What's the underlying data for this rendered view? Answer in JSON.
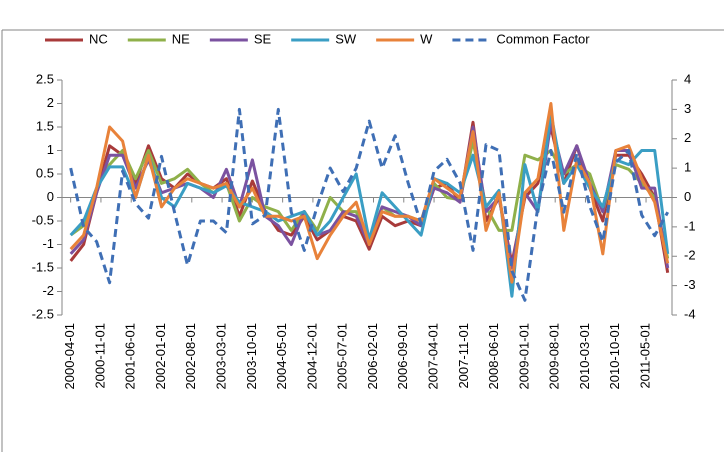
{
  "chart_data": {
    "type": "line",
    "x": [
      "2000-04-01",
      "2000-07-01",
      "2000-10-01",
      "2001-01-01",
      "2001-04-01",
      "2001-07-01",
      "2001-10-01",
      "2002-01-01",
      "2002-04-01",
      "2002-07-01",
      "2002-10-01",
      "2003-01-01",
      "2003-04-01",
      "2003-07-01",
      "2003-10-01",
      "2004-01-01",
      "2004-04-01",
      "2004-07-01",
      "2004-10-01",
      "2005-01-01",
      "2005-04-01",
      "2005-07-01",
      "2005-10-01",
      "2006-01-01",
      "2006-04-01",
      "2006-07-01",
      "2006-10-01",
      "2007-01-01",
      "2007-04-01",
      "2007-07-01",
      "2007-10-01",
      "2008-01-01",
      "2008-04-01",
      "2008-07-01",
      "2008-10-01",
      "2009-01-01",
      "2009-04-01",
      "2009-07-01",
      "2009-10-01",
      "2010-01-01",
      "2010-04-01",
      "2010-07-01",
      "2010-10-01",
      "2011-01-01",
      "2011-04-01",
      "2011-07-01",
      "2011-10-01"
    ],
    "series": [
      {
        "name": "NC",
        "color": "#a83a3a",
        "values": [
          -1.35,
          -1.0,
          0.1,
          1.1,
          0.9,
          0.3,
          1.1,
          0.4,
          0.2,
          0.5,
          0.3,
          0.2,
          0.4,
          -0.4,
          0.35,
          -0.3,
          -0.7,
          -0.8,
          -0.4,
          -0.9,
          -0.7,
          -0.4,
          -0.5,
          -1.1,
          -0.4,
          -0.6,
          -0.5,
          -0.6,
          0.2,
          0.3,
          -0.1,
          1.6,
          -0.5,
          0.0,
          -1.4,
          0.0,
          0.3,
          1.5,
          0.3,
          1.1,
          0.2,
          -0.5,
          0.9,
          0.9,
          0.5,
          0.0,
          -1.6
        ]
      },
      {
        "name": "NE",
        "color": "#8fb04a",
        "values": [
          -0.8,
          -0.6,
          0.2,
          0.7,
          1.0,
          0.4,
          1.0,
          0.3,
          0.4,
          0.6,
          0.3,
          0.1,
          0.3,
          -0.5,
          0.0,
          -0.2,
          -0.3,
          -0.7,
          -0.3,
          -0.7,
          0.0,
          -0.3,
          -0.3,
          -0.9,
          -0.2,
          -0.4,
          -0.4,
          -0.5,
          0.3,
          0.0,
          -0.05,
          1.2,
          -0.2,
          -0.7,
          -0.7,
          0.9,
          0.8,
          1.0,
          0.5,
          0.7,
          0.5,
          -0.3,
          0.7,
          0.6,
          0.3,
          0.0,
          -1.3
        ]
      },
      {
        "name": "SE",
        "color": "#7b52a0",
        "values": [
          -1.2,
          -0.9,
          0.1,
          0.9,
          0.9,
          0.2,
          0.8,
          0.1,
          0.2,
          0.3,
          0.2,
          0.0,
          0.6,
          -0.2,
          0.8,
          -0.4,
          -0.6,
          -1.0,
          -0.3,
          -0.8,
          -0.7,
          -0.3,
          -0.4,
          -1.0,
          -0.2,
          -0.3,
          -0.4,
          -0.6,
          0.2,
          0.1,
          -0.1,
          1.5,
          -0.3,
          0.0,
          -1.5,
          0.1,
          -0.3,
          1.6,
          0.5,
          1.1,
          0.3,
          -0.3,
          1.0,
          1.0,
          0.2,
          0.2,
          -1.5
        ]
      },
      {
        "name": "SW",
        "color": "#3a9ec4",
        "values": [
          -0.8,
          -0.5,
          0.2,
          0.65,
          0.65,
          0.0,
          0.9,
          0.0,
          -0.2,
          0.3,
          0.2,
          0.1,
          0.25,
          -0.1,
          -0.2,
          -0.3,
          -0.5,
          -0.4,
          -0.3,
          -0.8,
          -0.5,
          0.0,
          0.5,
          -0.9,
          0.1,
          -0.2,
          -0.5,
          -0.8,
          0.4,
          0.3,
          0.1,
          0.9,
          -0.2,
          0.15,
          -2.1,
          0.7,
          -0.3,
          1.8,
          0.3,
          0.7,
          0.2,
          -0.2,
          0.8,
          0.7,
          1.0,
          1.0,
          -1.2
        ]
      },
      {
        "name": "W",
        "color": "#e8823a",
        "values": [
          -1.1,
          -0.8,
          0.2,
          1.5,
          1.2,
          0.0,
          0.9,
          -0.2,
          0.2,
          0.4,
          0.3,
          0.2,
          0.3,
          -0.2,
          0.2,
          -0.4,
          -0.4,
          -0.5,
          -0.4,
          -1.3,
          -0.8,
          -0.4,
          -0.1,
          -1.0,
          -0.3,
          -0.4,
          -0.4,
          -0.5,
          0.4,
          0.2,
          0.0,
          1.4,
          -0.7,
          0.1,
          -1.8,
          0.1,
          0.4,
          2.0,
          -0.7,
          0.8,
          0.3,
          -1.2,
          1.0,
          1.1,
          0.4,
          -0.1,
          -1.4
        ]
      },
      {
        "name": "Common Factor",
        "color": "#3f6fb5",
        "dashed": true,
        "axis": "y2",
        "values": [
          1.0,
          -1.0,
          -1.5,
          -2.9,
          0.9,
          -0.2,
          -0.7,
          1.4,
          -0.5,
          -2.3,
          -0.8,
          -0.8,
          -1.2,
          3.0,
          -0.9,
          -0.6,
          3.0,
          -0.5,
          -1.8,
          -0.3,
          1.0,
          0.2,
          1.0,
          2.6,
          1.0,
          2.1,
          0.5,
          -0.9,
          0.9,
          1.3,
          0.5,
          -1.8,
          1.8,
          1.6,
          -2.5,
          -3.5,
          -0.3,
          1.6,
          -0.5,
          1.5,
          -0.3,
          -1.5,
          1.2,
          1.6,
          -0.6,
          -1.3,
          -0.5
        ]
      }
    ],
    "xlim": [
      "2000-02-01",
      "2011-11-01"
    ],
    "xticks": [
      "2000-04-01",
      "2000-11-01",
      "2001-06-01",
      "2002-01-01",
      "2002-08-01",
      "2003-03-01",
      "2003-10-01",
      "2004-05-01",
      "2004-12-01",
      "2005-07-01",
      "2006-02-01",
      "2006-09-01",
      "2007-04-01",
      "2007-11-01",
      "2008-06-01",
      "2009-01-01",
      "2009-08-01",
      "2010-03-01",
      "2010-10-01",
      "2011-05-01"
    ],
    "ylim": [
      -2.5,
      2.5
    ],
    "yticks": [
      -2.5,
      -2,
      -1.5,
      -1,
      -0.5,
      0,
      0.5,
      1,
      1.5,
      2,
      2.5
    ],
    "y2lim": [
      -4,
      4
    ],
    "y2ticks": [
      -4,
      -3,
      -2,
      -1,
      0,
      1,
      2,
      3,
      4
    ],
    "legend": "top"
  }
}
